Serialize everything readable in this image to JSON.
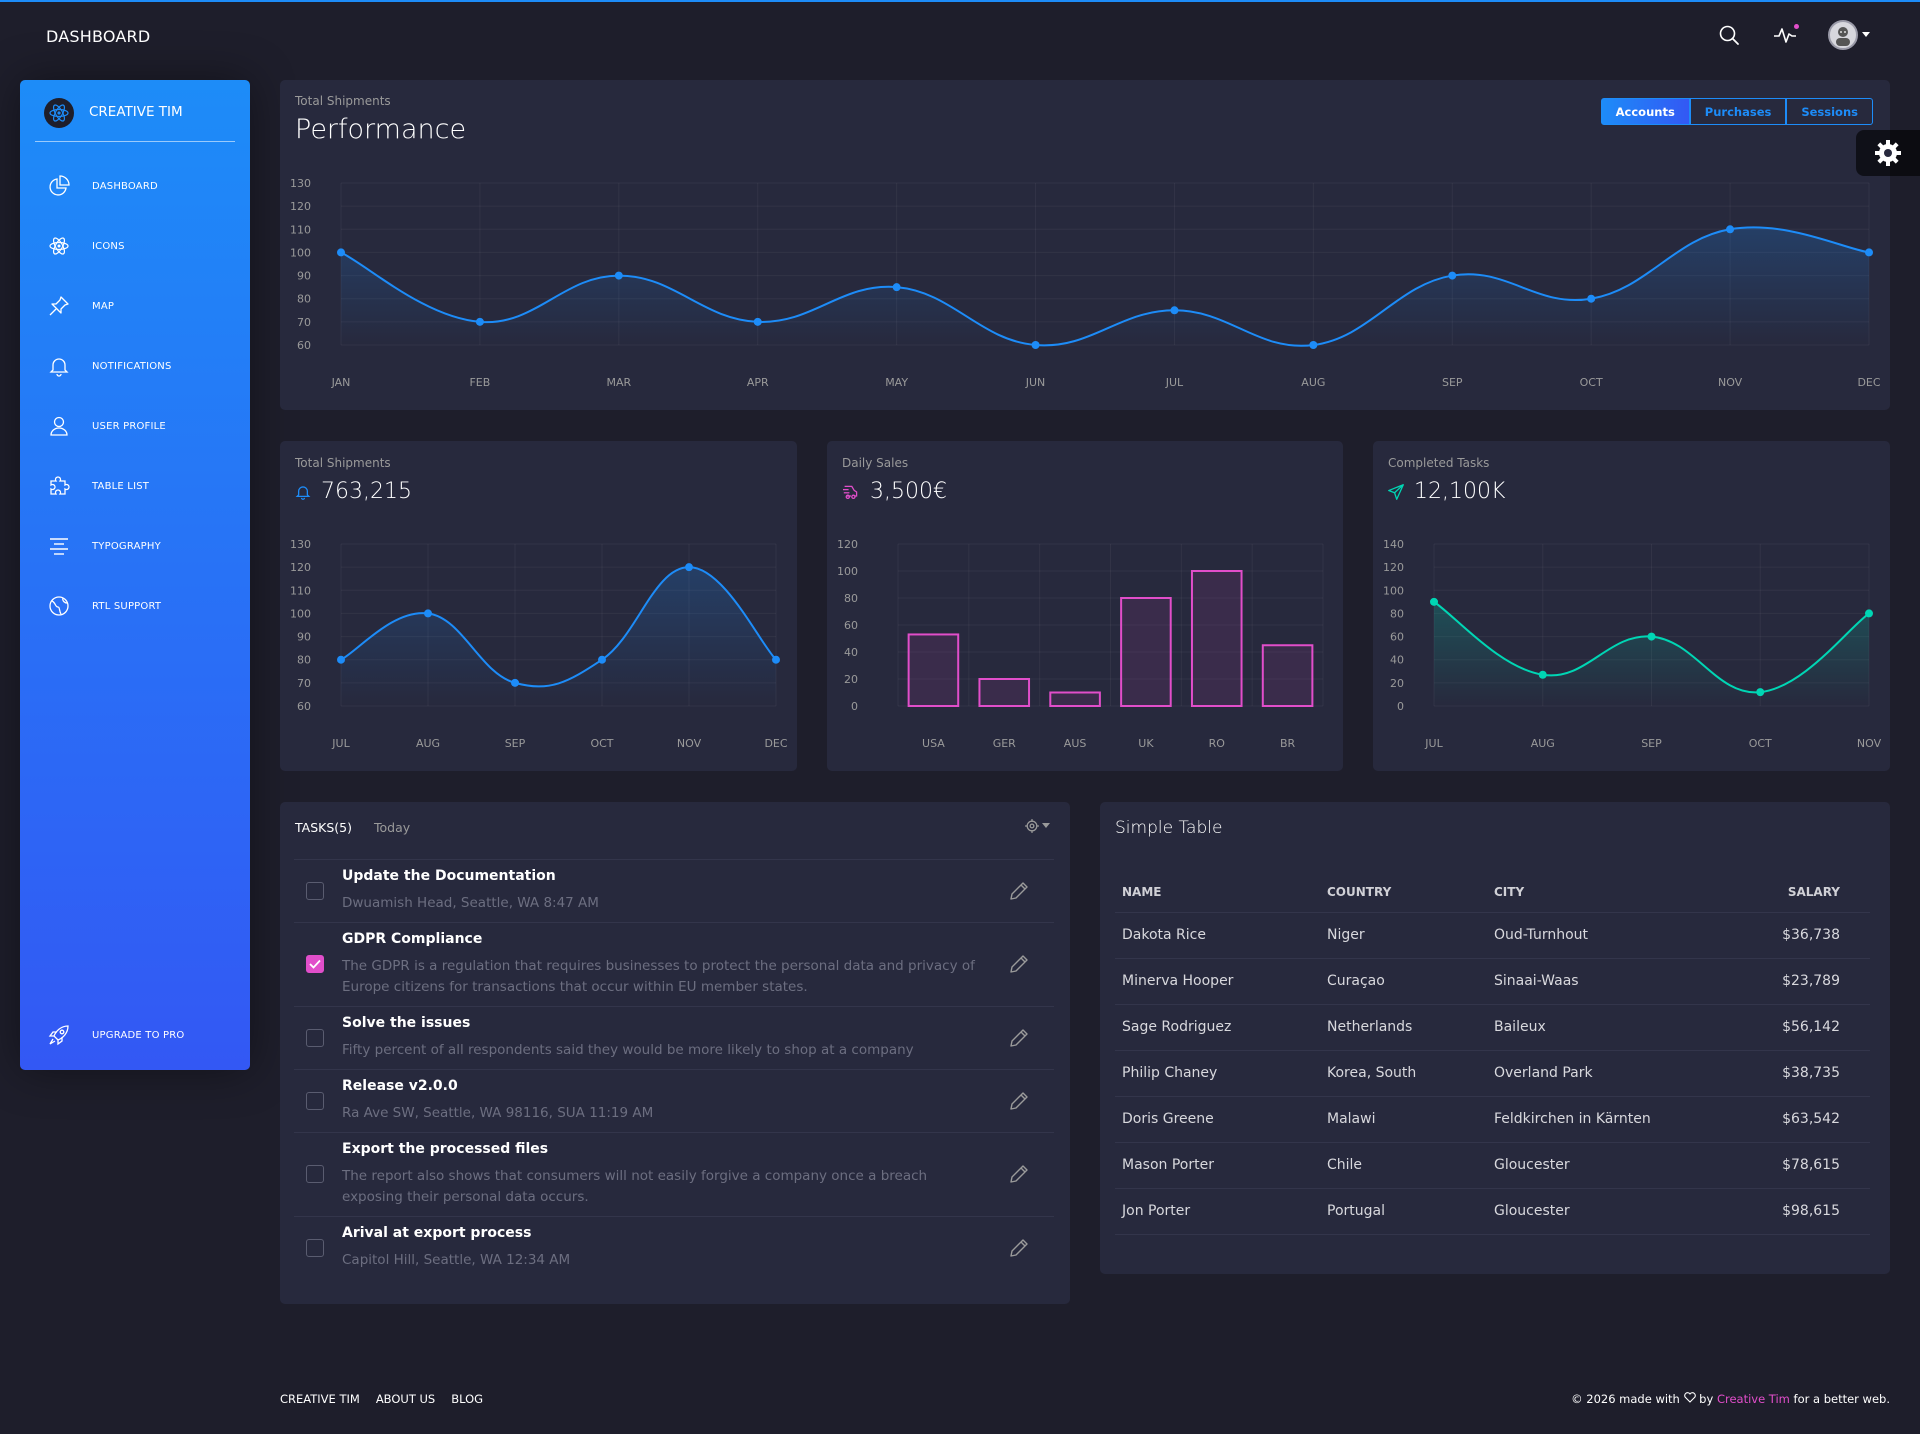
{
  "colors": {
    "blue": "#1d8cf8",
    "pink": "#e14eca",
    "teal": "#00d6b4",
    "card": "#27293d",
    "bg": "#1e1e2b"
  },
  "navbar": {
    "brand": "DASHBOARD",
    "icons": [
      "search-icon",
      "activity-icon",
      "avatar-icon"
    ]
  },
  "sidebar": {
    "brand": "CREATIVE TIM",
    "items": [
      {
        "label": "DASHBOARD",
        "icon": "chart-pie-icon"
      },
      {
        "label": "ICONS",
        "icon": "atom-icon"
      },
      {
        "label": "MAP",
        "icon": "pin-icon"
      },
      {
        "label": "NOTIFICATIONS",
        "icon": "bell-icon"
      },
      {
        "label": "USER PROFILE",
        "icon": "user-icon"
      },
      {
        "label": "TABLE LIST",
        "icon": "puzzle-icon"
      },
      {
        "label": "TYPOGRAPHY",
        "icon": "align-center-icon"
      },
      {
        "label": "RTL SUPPORT",
        "icon": "world-icon"
      }
    ],
    "upgrade": {
      "label": "UPGRADE TO PRO",
      "icon": "spaceship-icon"
    }
  },
  "performance": {
    "category": "Total Shipments",
    "title": "Performance",
    "tabs": [
      "Accounts",
      "Purchases",
      "Sessions"
    ],
    "active_tab": "Accounts"
  },
  "cards": {
    "shipments": {
      "category": "Total Shipments",
      "value": "763,215",
      "icon": "bell-icon"
    },
    "sales": {
      "category": "Daily Sales",
      "value": "3,500€",
      "icon": "delivery-fast-icon"
    },
    "tasks": {
      "category": "Completed Tasks",
      "value": "12,100K",
      "icon": "send-icon"
    }
  },
  "chart_data": [
    {
      "type": "line",
      "x": [
        "JAN",
        "FEB",
        "MAR",
        "APR",
        "MAY",
        "JUN",
        "JUL",
        "AUG",
        "SEP",
        "OCT",
        "NOV",
        "DEC"
      ],
      "values": [
        100,
        70,
        90,
        70,
        85,
        60,
        75,
        60,
        90,
        80,
        110,
        100
      ],
      "ylim": [
        60,
        130
      ],
      "yticks": [
        60,
        70,
        80,
        90,
        100,
        110,
        120,
        130
      ],
      "color": "#1d8cf8",
      "grid": true
    },
    {
      "type": "line",
      "x": [
        "JUL",
        "AUG",
        "SEP",
        "OCT",
        "NOV",
        "DEC"
      ],
      "values": [
        80,
        100,
        70,
        80,
        120,
        80
      ],
      "ylim": [
        60,
        130
      ],
      "yticks": [
        60,
        70,
        80,
        90,
        100,
        110,
        120,
        130
      ],
      "color": "#1d8cf8",
      "grid": true
    },
    {
      "type": "bar",
      "categories": [
        "USA",
        "GER",
        "AUS",
        "UK",
        "RO",
        "BR"
      ],
      "values": [
        53,
        20,
        10,
        80,
        100,
        45
      ],
      "ylim": [
        0,
        120
      ],
      "yticks": [
        0,
        20,
        40,
        60,
        80,
        100,
        120
      ],
      "color": "#e14eca",
      "grid": true
    },
    {
      "type": "line",
      "x": [
        "JUL",
        "AUG",
        "SEP",
        "OCT",
        "NOV"
      ],
      "values": [
        90,
        27,
        60,
        12,
        80
      ],
      "ylim": [
        0,
        140
      ],
      "yticks": [
        0,
        20,
        40,
        60,
        80,
        100,
        120,
        140
      ],
      "color": "#00d6b4",
      "grid": true
    }
  ],
  "tasks": {
    "title": "TASKS(5)",
    "subtitle": "Today",
    "items": [
      {
        "title": "Update the Documentation",
        "desc": "Dwuamish Head, Seattle, WA 8:47 AM",
        "checked": false
      },
      {
        "title": "GDPR Compliance",
        "desc": "The GDPR is a regulation that requires businesses to protect the personal data and privacy of Europe citizens for transactions that occur within EU member states.",
        "checked": true
      },
      {
        "title": "Solve the issues",
        "desc": "Fifty percent of all respondents said they would be more likely to shop at a company",
        "checked": false
      },
      {
        "title": "Release v2.0.0",
        "desc": "Ra Ave SW, Seattle, WA 98116, SUA 11:19 AM",
        "checked": false
      },
      {
        "title": "Export the processed files",
        "desc": "The report also shows that consumers will not easily forgive a company once a breach exposing their personal data occurs.",
        "checked": false
      },
      {
        "title": "Arival at export process",
        "desc": "Capitol Hill, Seattle, WA 12:34 AM",
        "checked": false
      }
    ]
  },
  "simple_table": {
    "title": "Simple Table",
    "headers": [
      "NAME",
      "COUNTRY",
      "CITY",
      "SALARY"
    ],
    "rows": [
      [
        "Dakota Rice",
        "Niger",
        "Oud-Turnhout",
        "$36,738"
      ],
      [
        "Minerva Hooper",
        "Curaçao",
        "Sinaai-Waas",
        "$23,789"
      ],
      [
        "Sage Rodriguez",
        "Netherlands",
        "Baileux",
        "$56,142"
      ],
      [
        "Philip Chaney",
        "Korea, South",
        "Overland Park",
        "$38,735"
      ],
      [
        "Doris Greene",
        "Malawi",
        "Feldkirchen in Kärnten",
        "$63,542"
      ],
      [
        "Mason Porter",
        "Chile",
        "Gloucester",
        "$78,615"
      ],
      [
        "Jon Porter",
        "Portugal",
        "Gloucester",
        "$98,615"
      ]
    ]
  },
  "footer": {
    "links": [
      "CREATIVE TIM",
      "ABOUT US",
      "BLOG"
    ],
    "copy_prefix": "© 2026 made with",
    "copy_by": "by",
    "copy_link": "Creative Tim",
    "copy_suffix": "for a better web."
  }
}
